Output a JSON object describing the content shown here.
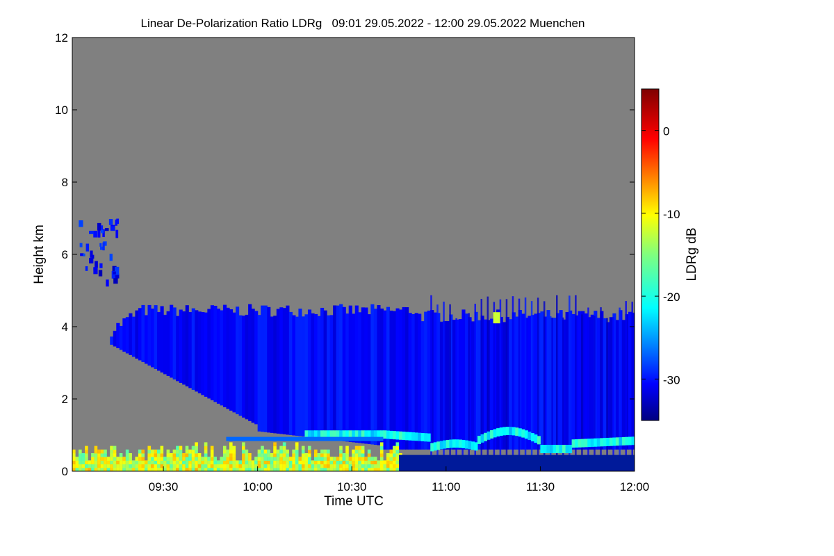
{
  "chart_data": {
    "type": "heatmap",
    "title": "Linear De-Polarization Ratio LDRg   09:01 29.05.2022 - 12:00 29.05.2022 Muenchen",
    "xlabel": "Time UTC",
    "ylabel": "Height km",
    "xlim": [
      "09:01",
      "12:00"
    ],
    "ylim": [
      0,
      12
    ],
    "x_ticks": [
      "09:30",
      "10:00",
      "10:30",
      "11:00",
      "11:30",
      "12:00"
    ],
    "x_tick_minutes": [
      30,
      60,
      90,
      120,
      150,
      180
    ],
    "y_ticks": [
      "0",
      "2",
      "4",
      "6",
      "8",
      "10",
      "12"
    ],
    "y_tick_values": [
      0,
      2,
      4,
      6,
      8,
      10,
      12
    ],
    "background_color": "#808080",
    "colorbar": {
      "label": "LDRg dB",
      "range": [
        -35,
        5
      ],
      "ticks": [
        "0",
        "-10",
        "-20",
        "-30"
      ],
      "tick_values": [
        0,
        -10,
        -20,
        -30
      ],
      "colormap": "jet"
    },
    "features": [
      {
        "name": "aerosol layer",
        "time": [
          "09:15",
          "12:00"
        ],
        "height_km": [
          0.5,
          4.5
        ],
        "ldr_db": -30
      },
      {
        "name": "melting layer",
        "time": [
          "10:40",
          "12:00"
        ],
        "height_km": [
          0.4,
          1.3
        ],
        "ldr_db": -20
      },
      {
        "name": "near-surface particles",
        "time": [
          "09:01",
          "10:45"
        ],
        "height_km": [
          0,
          0.8
        ],
        "ldr_db": -12
      },
      {
        "name": "upper cloud",
        "time": [
          "09:05",
          "09:15"
        ],
        "height_km": [
          5.2,
          7.0
        ],
        "ldr_db": -30
      }
    ]
  }
}
